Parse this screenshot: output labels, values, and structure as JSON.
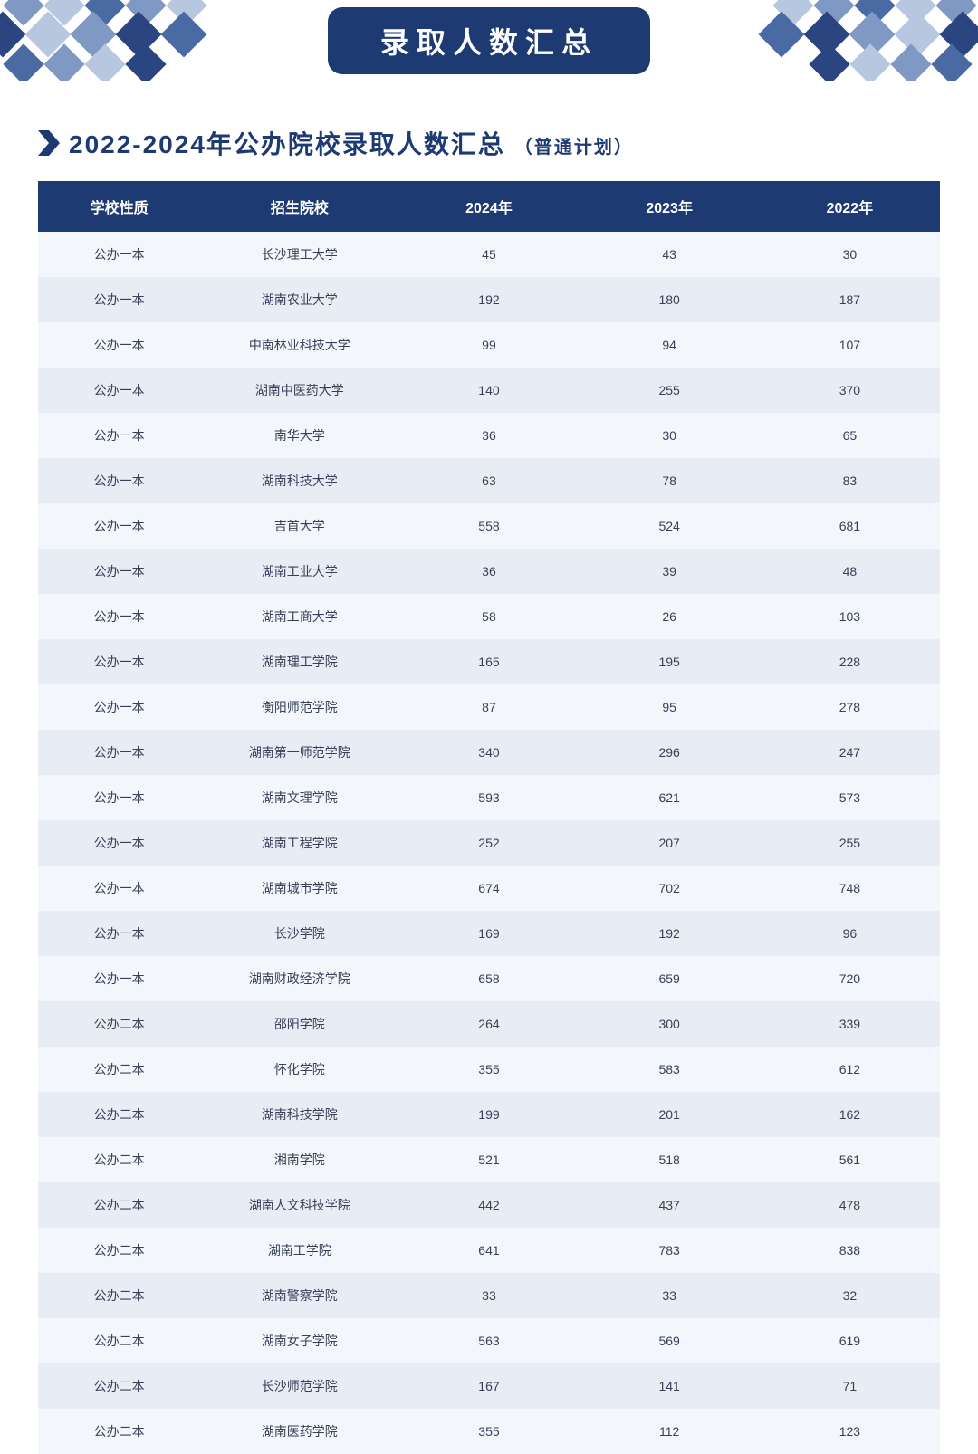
{
  "banner": {
    "title": "录取人数汇总",
    "pill_bg": "#1e3a72",
    "pill_fg": "#ffffff",
    "diamond_colors": [
      "#b8c7e0",
      "#7f98c4",
      "#4a6aa3",
      "#2a4580"
    ]
  },
  "heading": {
    "main": "2022-2024年公办院校录取人数汇总",
    "sub": "（普通计划）",
    "color": "#1e3a72"
  },
  "table": {
    "header_bg": "#1e3a72",
    "header_fg": "#ffffff",
    "row_bg_odd": "#f3f6fb",
    "row_bg_even": "#e7ecf5",
    "cell_fg": "#374057",
    "columns": [
      "学校性质",
      "招生院校",
      "2024年",
      "2023年",
      "2022年"
    ],
    "rows": [
      [
        "公办一本",
        "长沙理工大学",
        "45",
        "43",
        "30"
      ],
      [
        "公办一本",
        "湖南农业大学",
        "192",
        "180",
        "187"
      ],
      [
        "公办一本",
        "中南林业科技大学",
        "99",
        "94",
        "107"
      ],
      [
        "公办一本",
        "湖南中医药大学",
        "140",
        "255",
        "370"
      ],
      [
        "公办一本",
        "南华大学",
        "36",
        "30",
        "65"
      ],
      [
        "公办一本",
        "湖南科技大学",
        "63",
        "78",
        "83"
      ],
      [
        "公办一本",
        "吉首大学",
        "558",
        "524",
        "681"
      ],
      [
        "公办一本",
        "湖南工业大学",
        "36",
        "39",
        "48"
      ],
      [
        "公办一本",
        "湖南工商大学",
        "58",
        "26",
        "103"
      ],
      [
        "公办一本",
        "湖南理工学院",
        "165",
        "195",
        "228"
      ],
      [
        "公办一本",
        "衡阳师范学院",
        "87",
        "95",
        "278"
      ],
      [
        "公办一本",
        "湖南第一师范学院",
        "340",
        "296",
        "247"
      ],
      [
        "公办一本",
        "湖南文理学院",
        "593",
        "621",
        "573"
      ],
      [
        "公办一本",
        "湖南工程学院",
        "252",
        "207",
        "255"
      ],
      [
        "公办一本",
        "湖南城市学院",
        "674",
        "702",
        "748"
      ],
      [
        "公办一本",
        "长沙学院",
        "169",
        "192",
        "96"
      ],
      [
        "公办一本",
        "湖南财政经济学院",
        "658",
        "659",
        "720"
      ],
      [
        "公办二本",
        "邵阳学院",
        "264",
        "300",
        "339"
      ],
      [
        "公办二本",
        "怀化学院",
        "355",
        "583",
        "612"
      ],
      [
        "公办二本",
        "湖南科技学院",
        "199",
        "201",
        "162"
      ],
      [
        "公办二本",
        "湘南学院",
        "521",
        "518",
        "561"
      ],
      [
        "公办二本",
        "湖南人文科技学院",
        "442",
        "437",
        "478"
      ],
      [
        "公办二本",
        "湖南工学院",
        "641",
        "783",
        "838"
      ],
      [
        "公办二本",
        "湖南警察学院",
        "33",
        "33",
        "32"
      ],
      [
        "公办二本",
        "湖南女子学院",
        "563",
        "569",
        "619"
      ],
      [
        "公办二本",
        "长沙师范学院",
        "167",
        "141",
        "71"
      ],
      [
        "公办二本",
        "湖南医药学院",
        "355",
        "112",
        "123"
      ]
    ]
  }
}
